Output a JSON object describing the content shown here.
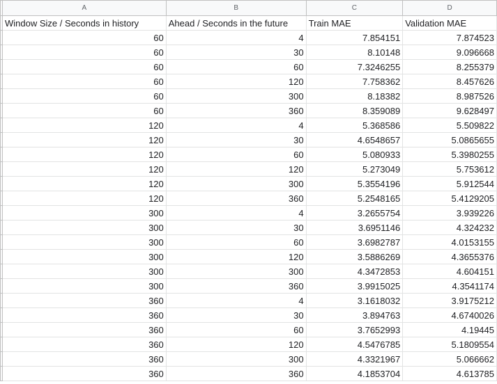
{
  "columns": [
    "A",
    "B",
    "C",
    "D"
  ],
  "headers": [
    "Window Size / Seconds in history",
    "Ahead / Seconds in the future",
    "Train MAE",
    "Validation MAE"
  ],
  "rows": [
    [
      "60",
      "4",
      "7.854151",
      "7.874523"
    ],
    [
      "60",
      "30",
      "8.10148",
      "9.096668"
    ],
    [
      "60",
      "60",
      "7.3246255",
      "8.255379"
    ],
    [
      "60",
      "120",
      "7.758362",
      "8.457626"
    ],
    [
      "60",
      "300",
      "8.18382",
      "8.987526"
    ],
    [
      "60",
      "360",
      "8.359089",
      "9.628497"
    ],
    [
      "120",
      "4",
      "5.368586",
      "5.509822"
    ],
    [
      "120",
      "30",
      "4.6548657",
      "5.0865655"
    ],
    [
      "120",
      "60",
      "5.080933",
      "5.3980255"
    ],
    [
      "120",
      "120",
      "5.273049",
      "5.753612"
    ],
    [
      "120",
      "300",
      "5.3554196",
      "5.912544"
    ],
    [
      "120",
      "360",
      "5.2548165",
      "5.4129205"
    ],
    [
      "300",
      "4",
      "3.2655754",
      "3.939226"
    ],
    [
      "300",
      "30",
      "3.6951146",
      "4.324232"
    ],
    [
      "300",
      "60",
      "3.6982787",
      "4.0153155"
    ],
    [
      "300",
      "120",
      "3.5886269",
      "4.3655376"
    ],
    [
      "300",
      "300",
      "4.3472853",
      "4.604151"
    ],
    [
      "300",
      "360",
      "3.9915025",
      "4.3541174"
    ],
    [
      "360",
      "4",
      "3.1618032",
      "3.9175212"
    ],
    [
      "360",
      "30",
      "3.894763",
      "4.6740026"
    ],
    [
      "360",
      "60",
      "3.7652993",
      "4.19445"
    ],
    [
      "360",
      "120",
      "4.5476785",
      "5.1809554"
    ],
    [
      "360",
      "300",
      "4.3321967",
      "5.066662"
    ],
    [
      "360",
      "360",
      "4.1853704",
      "4.613785"
    ]
  ]
}
